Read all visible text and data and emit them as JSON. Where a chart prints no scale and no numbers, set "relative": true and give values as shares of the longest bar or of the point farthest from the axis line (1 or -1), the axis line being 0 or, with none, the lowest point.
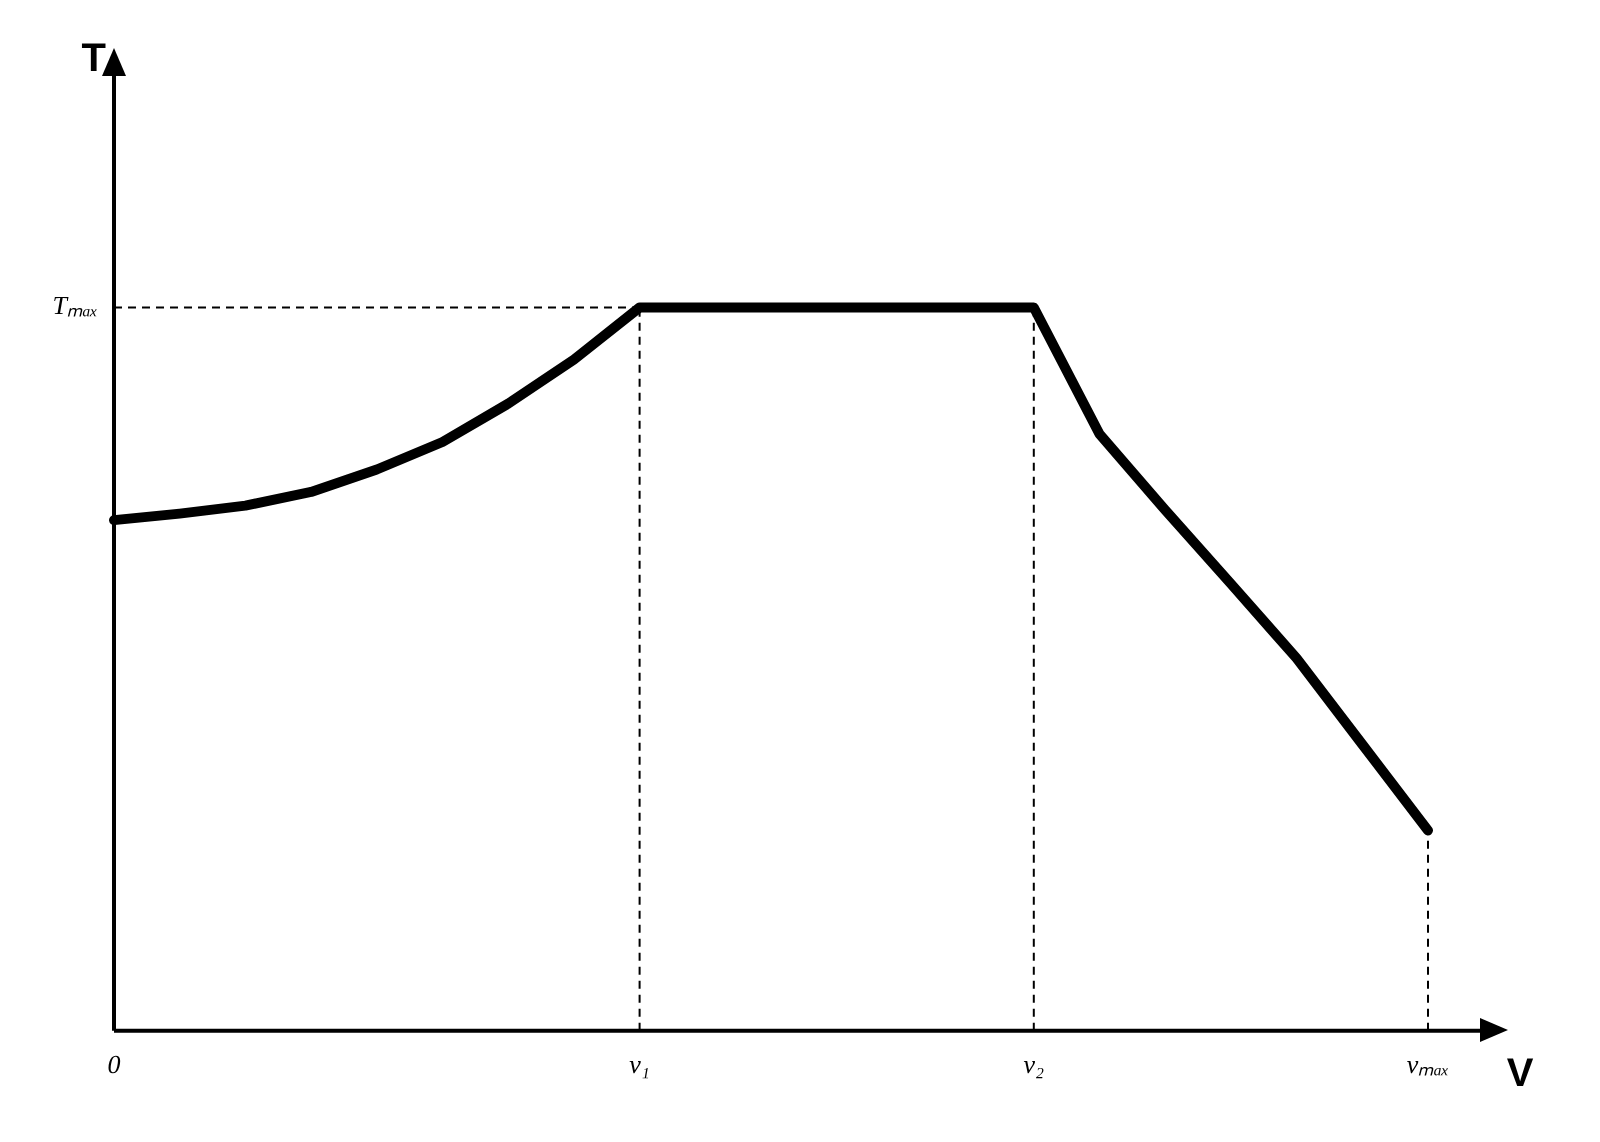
{
  "chart_data": {
    "type": "line",
    "relative": true,
    "xlabel": "V",
    "annotations": [
      "T"
    ],
    "categories": [
      "0",
      null,
      null,
      null,
      null,
      null,
      null,
      null,
      "v₁",
      null,
      null,
      null,
      null,
      null,
      "v₂",
      null,
      null,
      null,
      null,
      null,
      "vₘₐₓ"
    ],
    "series": [
      {
        "color": "#000000",
        "values": [
          0.706,
          0.715,
          0.726,
          0.745,
          0.776,
          0.814,
          0.867,
          0.928,
          1,
          1,
          1,
          1,
          1,
          1,
          1,
          0.825,
          0.72,
          0.618,
          0.515,
          0.396,
          0.277
        ]
      }
    ],
    "ref_lines": [
      {
        "axis": "y",
        "value": 1,
        "label": "Tₘₐₓ",
        "line_style": "dashed"
      },
      {
        "axis": "x",
        "value": "v₁",
        "line_style": "dashed"
      },
      {
        "axis": "x",
        "value": "v₂",
        "line_style": "dashed"
      },
      {
        "axis": "x",
        "value": "vₘₐₓ",
        "line_style": "dashed"
      }
    ],
    "marker": "none",
    "line_style": "solid",
    "grid": false,
    "legend": false
  }
}
